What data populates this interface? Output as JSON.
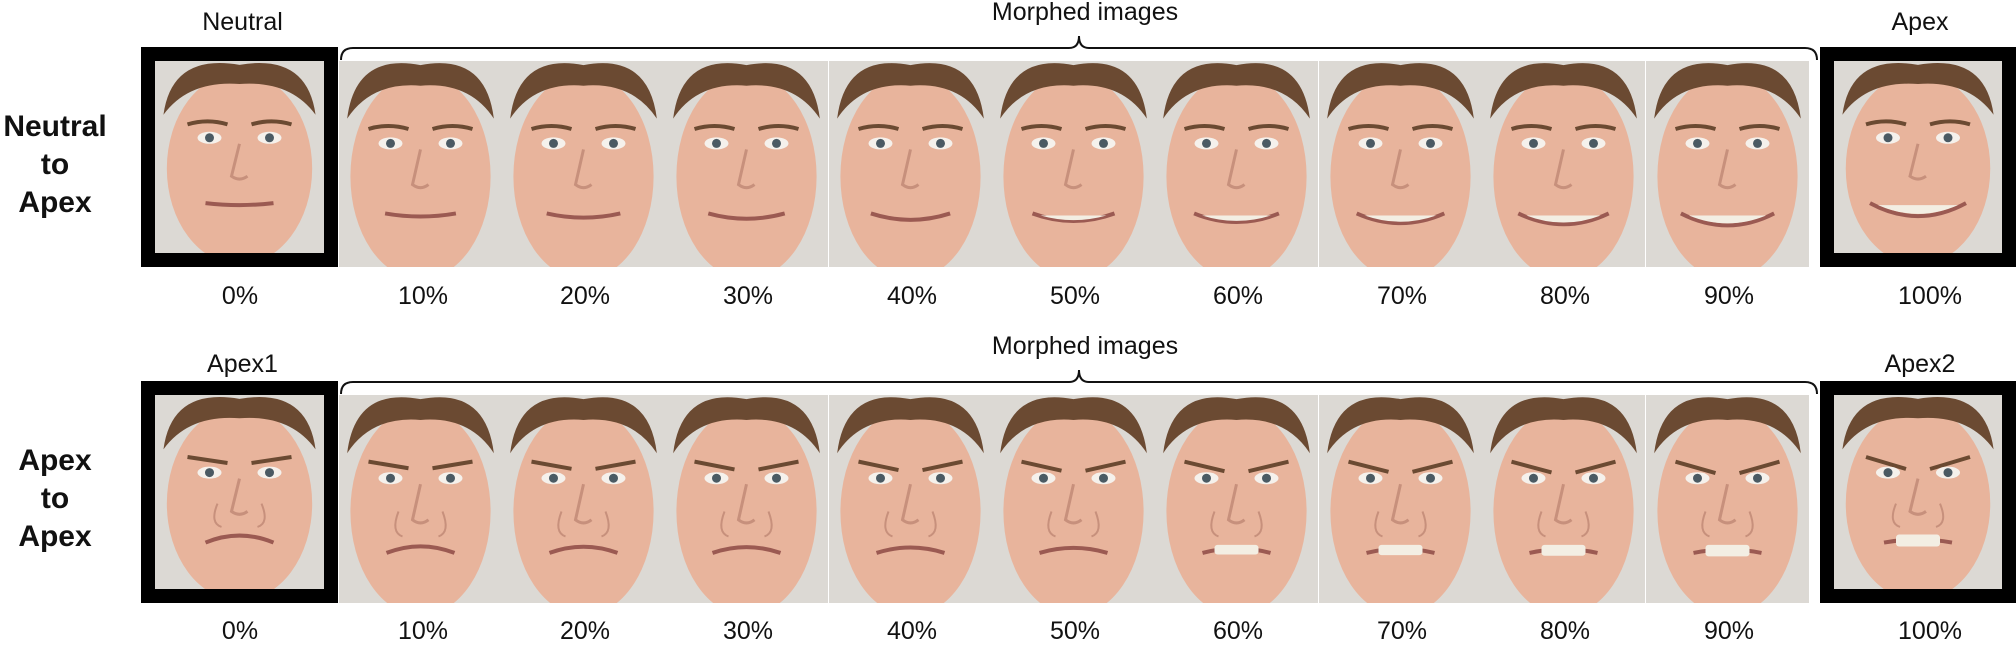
{
  "rows": [
    {
      "label_lines": [
        "Neutral",
        "to",
        "Apex"
      ],
      "left_caption": "Neutral",
      "bracket_caption": "Morphed images",
      "right_caption": "Apex",
      "percents": [
        "0%",
        "10%",
        "20%",
        "30%",
        "40%",
        "50%",
        "60%",
        "70%",
        "80%",
        "90%",
        "100%"
      ],
      "expression": "smile",
      "intensities": [
        0,
        0.1,
        0.2,
        0.3,
        0.4,
        0.5,
        0.6,
        0.7,
        0.8,
        0.9,
        1.0
      ]
    },
    {
      "label_lines": [
        "Apex",
        "to",
        "Apex"
      ],
      "left_caption": "Apex1",
      "bracket_caption": "Morphed images",
      "right_caption": "Apex2",
      "percents": [
        "0%",
        "10%",
        "20%",
        "30%",
        "40%",
        "50%",
        "60%",
        "70%",
        "80%",
        "90%",
        "100%"
      ],
      "expression": "sad-to-disgust",
      "intensities": [
        0,
        0.1,
        0.2,
        0.3,
        0.4,
        0.5,
        0.6,
        0.7,
        0.8,
        0.9,
        1.0
      ]
    }
  ],
  "colors": {
    "frame": "#000000",
    "skin": "#e8b49c",
    "hair": "#6b4a32",
    "background": "#ffffff"
  }
}
